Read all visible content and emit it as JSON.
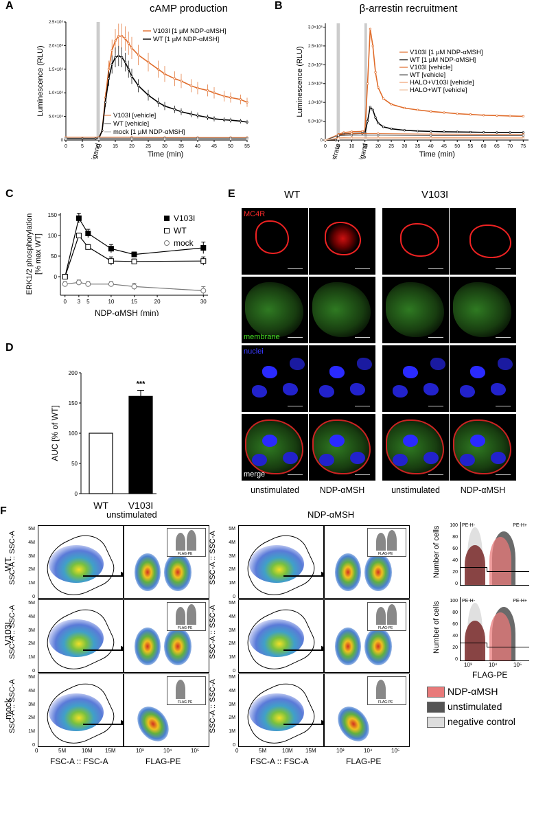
{
  "panels": {
    "A": {
      "letter": "A",
      "chart_data": {
        "type": "line",
        "title": "cAMP production",
        "xlabel": "Time (min)",
        "ylabel": "Luminescence (RLU)",
        "xlim": [
          0,
          55
        ],
        "ylim": [
          0,
          2500000
        ],
        "xticks": [
          0,
          5,
          10,
          15,
          20,
          25,
          30,
          35,
          40,
          45,
          50,
          55
        ],
        "yticks": [
          "0",
          "5.0×10⁵",
          "1.0×10⁶",
          "1.5×10⁶",
          "2.0×10⁶",
          "2.5×10⁶"
        ],
        "annotation": "ligand",
        "series": [
          {
            "name": "V103I [1 µM NDP-αMSH]",
            "color": "#e06c2a",
            "x": [
              0,
              5,
              9,
              10,
              11,
              12,
              13,
              14,
              15,
              16,
              17,
              18,
              19,
              20,
              22,
              25,
              28,
              30,
              33,
              35,
              38,
              40,
              43,
              45,
              48,
              50,
              53,
              55
            ],
            "y": [
              30000,
              30000,
              30000,
              35000,
              200000,
              900000,
              1500000,
              1900000,
              2100000,
              2200000,
              2200000,
              2150000,
              2050000,
              1950000,
              1800000,
              1650000,
              1500000,
              1400000,
              1300000,
              1250000,
              1150000,
              1100000,
              1050000,
              1000000,
              930000,
              900000,
              860000,
              800000
            ]
          },
          {
            "name": "WT [1 µM NDP-αMSH]",
            "color": "#000000",
            "x": [
              0,
              5,
              9,
              10,
              11,
              12,
              13,
              14,
              15,
              16,
              17,
              18,
              19,
              20,
              22,
              25,
              28,
              30,
              33,
              35,
              38,
              40,
              43,
              45,
              48,
              50,
              53,
              55
            ],
            "y": [
              30000,
              30000,
              30000,
              35000,
              200000,
              800000,
              1300000,
              1600000,
              1750000,
              1780000,
              1750000,
              1650000,
              1500000,
              1350000,
              1150000,
              950000,
              800000,
              720000,
              650000,
              600000,
              550000,
              520000,
              480000,
              450000,
              430000,
              420000,
              400000,
              380000
            ]
          },
          {
            "name": "V103I [vehicle]",
            "color": "#e06c2a",
            "x": [
              0,
              10,
              20,
              30,
              40,
              50,
              55
            ],
            "y": [
              60000,
              60000,
              60000,
              55000,
              55000,
              55000,
              55000
            ]
          },
          {
            "name": "WT [vehicle]",
            "color": "#555555",
            "x": [
              0,
              10,
              20,
              30,
              40,
              50,
              55
            ],
            "y": [
              40000,
              40000,
              40000,
              40000,
              40000,
              40000,
              40000
            ]
          },
          {
            "name": "mock [1 µM NDP-αMSH]",
            "color": "#aaaaaa",
            "x": [
              0,
              10,
              20,
              30,
              40,
              50,
              55
            ],
            "y": [
              20000,
              20000,
              20000,
              20000,
              20000,
              20000,
              20000
            ]
          }
        ]
      }
    },
    "B": {
      "letter": "B",
      "chart_data": {
        "type": "line",
        "title": "β-arrestin recruitment",
        "xlabel": "Time (min)",
        "ylabel": "Luminescence (RLU)",
        "xlim": [
          0,
          77
        ],
        "ylim": [
          0,
          3100000
        ],
        "xticks": [
          0,
          5,
          10,
          15,
          20,
          25,
          30,
          35,
          40,
          45,
          50,
          55,
          60,
          65,
          70,
          75
        ],
        "yticks": [
          "0",
          "5.0×10⁵",
          "1.0×10⁶",
          "1.5×10⁶",
          "2.0×10⁶",
          "2.5×10⁶",
          "3.0×10⁶"
        ],
        "annotations": [
          "substrate",
          "ligand"
        ],
        "series": [
          {
            "name": "V103I [1 µM NDP-αMSH]",
            "color": "#e06c2a",
            "x": [
              0,
              4,
              5,
              7,
              10,
              14,
              15,
              16,
              17,
              18,
              19,
              20,
              22,
              25,
              30,
              35,
              40,
              45,
              50,
              55,
              60,
              65,
              70,
              75
            ],
            "y": [
              0,
              0,
              150000,
              200000,
              220000,
              230000,
              250000,
              1500000,
              2950000,
              2500000,
              1800000,
              1400000,
              1100000,
              950000,
              850000,
              800000,
              760000,
              730000,
              700000,
              680000,
              660000,
              650000,
              640000,
              630000
            ]
          },
          {
            "name": "WT [1 µM NDP-αMSH]",
            "color": "#000000",
            "x": [
              0,
              4,
              5,
              7,
              10,
              14,
              15,
              16,
              17,
              18,
              19,
              20,
              22,
              25,
              30,
              35,
              40,
              45,
              50,
              55,
              60,
              65,
              70,
              75
            ],
            "y": [
              0,
              0,
              120000,
              160000,
              170000,
              180000,
              190000,
              500000,
              880000,
              800000,
              600000,
              450000,
              350000,
              300000,
              260000,
              240000,
              230000,
              220000,
              215000,
              210000,
              205000,
              200000,
              200000,
              200000
            ]
          },
          {
            "name": "V103I [vehicle]",
            "color": "#e06c2a",
            "x": [
              0,
              5,
              10,
              20,
              40,
              75
            ],
            "y": [
              0,
              150000,
              170000,
              170000,
              160000,
              150000
            ]
          },
          {
            "name": "WT [vehicle]",
            "color": "#555555",
            "x": [
              0,
              5,
              10,
              20,
              40,
              75
            ],
            "y": [
              0,
              120000,
              130000,
              130000,
              120000,
              120000
            ]
          },
          {
            "name": "HALO+V103I [vehicle]",
            "color": "#f0a070",
            "x": [
              0,
              5,
              10,
              20,
              40,
              75
            ],
            "y": [
              0,
              60000,
              70000,
              70000,
              65000,
              60000
            ]
          },
          {
            "name": "HALO+WT [vehicle]",
            "color": "#f0c0a0",
            "x": [
              0,
              5,
              10,
              20,
              40,
              75
            ],
            "y": [
              0,
              40000,
              40000,
              40000,
              40000,
              40000
            ]
          }
        ]
      }
    },
    "C": {
      "letter": "C",
      "chart_data": {
        "type": "line",
        "xlabel": "NDP-αMSH (min)",
        "ylabel": "ERK1/2 phosphorylation [% max WT]",
        "xlim": [
          -1,
          31
        ],
        "ylim": [
          -45,
          155
        ],
        "xticks": [
          0,
          3,
          5,
          10,
          15,
          20,
          30
        ],
        "yticks": [
          0,
          50,
          100,
          150
        ],
        "series": [
          {
            "name": "V103I",
            "marker": "filled-square",
            "x": [
              0,
              3,
              5,
              10,
              15,
              30
            ],
            "y": [
              0,
              142,
              105,
              68,
              54,
              70
            ],
            "err": [
              4,
              12,
              10,
              10,
              6,
              14
            ]
          },
          {
            "name": "WT",
            "marker": "open-square",
            "x": [
              0,
              3,
              5,
              10,
              15,
              30
            ],
            "y": [
              0,
              100,
              72,
              38,
              37,
              38
            ],
            "err": [
              3,
              6,
              6,
              10,
              6,
              10
            ]
          },
          {
            "name": "mock",
            "marker": "open-circle-cross",
            "x": [
              0,
              3,
              5,
              10,
              15,
              30
            ],
            "y": [
              -18,
              -14,
              -18,
              -18,
              -24,
              -34
            ],
            "err": [
              6,
              6,
              6,
              6,
              8,
              10
            ]
          }
        ]
      }
    },
    "D": {
      "letter": "D",
      "chart_data": {
        "type": "bar",
        "ylabel": "AUC [% of WT]",
        "categories": [
          "WT",
          "V103I"
        ],
        "values": [
          100,
          161
        ],
        "errors": [
          0,
          10
        ],
        "ylim": [
          0,
          200
        ],
        "yticks": [
          0,
          50,
          100,
          150,
          200
        ],
        "significance": "***"
      }
    },
    "E": {
      "letter": "E",
      "groups": [
        "WT",
        "V103I"
      ],
      "row_labels": [
        "MC4R",
        "membrane",
        "nuclei",
        "merge"
      ],
      "row_colors": [
        "#ff2a2a",
        "#44dd22",
        "#3a3aff",
        "#ffffff"
      ],
      "column_labels": [
        "unstimulated",
        "NDP-αMSH",
        "unstimulated",
        "NDP-αMSH"
      ]
    },
    "F": {
      "letter": "F",
      "conditions": [
        "unstimulated",
        "NDP-αMSH"
      ],
      "row_labels": [
        "WT",
        "V103I",
        "mock"
      ],
      "scatter_xlabel": "FSC-A :: FSC-A",
      "scatter_ylabel": "SSC-A :: SSC-A",
      "scatter_xticks": [
        "0",
        "5M",
        "10M",
        "15M"
      ],
      "scatter_yticks": [
        "0",
        "1M",
        "2M",
        "3M",
        "4M",
        "5M"
      ],
      "flag_xlabel": "FLAG-PE",
      "flag_xticks": [
        "10³",
        "10⁴",
        "10⁵"
      ],
      "histogram": {
        "xlabel": "FLAG-PE",
        "ylabel": "Number of cells",
        "yticks": [
          "0",
          "20",
          "40",
          "60",
          "80",
          "100"
        ],
        "xticks": [
          "10³",
          "10⁴",
          "10⁵"
        ],
        "gate_labels": [
          "PE-H-",
          "PE-H+"
        ]
      },
      "legend": [
        {
          "label": "NDP-αMSH",
          "color": "#e87a7a"
        },
        {
          "label": "unstimulated",
          "color": "#555555"
        },
        {
          "label": "negative control",
          "color": "#dddddd"
        }
      ]
    }
  }
}
